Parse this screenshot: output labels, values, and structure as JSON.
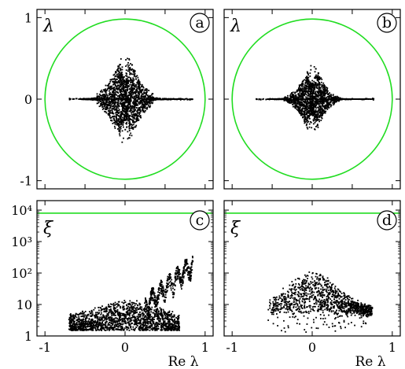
{
  "chart_data": [
    {
      "panel": "a",
      "type": "scatter",
      "y_symbol": "λ",
      "xlim": [
        -1.1,
        1.1
      ],
      "ylim": [
        -1.1,
        1.1
      ],
      "y_ticks": [
        {
          "v": 1,
          "label": "1"
        },
        {
          "v": 0,
          "label": "0"
        },
        {
          "v": -1,
          "label": "-1"
        }
      ],
      "x_ticks": [
        -1,
        -0.5,
        0,
        0.5,
        1
      ],
      "unit_circle": true,
      "circle_color": "#22dd22",
      "point_color": "#000000",
      "cloud": {
        "x_min": -0.7,
        "x_max": 0.85,
        "imag_max": 0.62,
        "center_x": 0.0,
        "n_points": 1800
      }
    },
    {
      "panel": "b",
      "type": "scatter",
      "y_symbol": "λ",
      "xlim": [
        -1.1,
        1.1
      ],
      "ylim": [
        -1.1,
        1.1
      ],
      "y_ticks": [
        {
          "v": 1,
          "label": ""
        },
        {
          "v": 0,
          "label": ""
        },
        {
          "v": -1,
          "label": ""
        }
      ],
      "x_ticks": [
        -1,
        -0.5,
        0,
        0.5,
        1
      ],
      "unit_circle": true,
      "circle_color": "#22dd22",
      "point_color": "#000000",
      "cloud": {
        "x_min": -0.7,
        "x_max": 0.78,
        "imag_max": 0.5,
        "center_x": 0.0,
        "n_points": 1500
      }
    },
    {
      "panel": "c",
      "type": "scatter",
      "y_symbol": "ξ",
      "y_scale": "log",
      "xlim": [
        -1.1,
        1.1
      ],
      "ylim": [
        1,
        20000
      ],
      "y_ticks": [
        {
          "v": 10000,
          "label": "10⁴"
        },
        {
          "v": 1000,
          "label": "10³"
        },
        {
          "v": 100,
          "label": "10²"
        },
        {
          "v": 10,
          "label": "10"
        },
        {
          "v": 1,
          "label": "1"
        }
      ],
      "x_ticks": [
        {
          "v": -1,
          "label": "-1"
        },
        {
          "v": 0,
          "label": "0"
        },
        {
          "v": 1,
          "label": "1"
        }
      ],
      "xlabel": "Re λ",
      "reference_line": {
        "y": 8000,
        "color": "#22dd22"
      },
      "point_color": "#000000",
      "cloud": {
        "x_min": -0.7,
        "x_max": 0.83,
        "n_points": 1600
      }
    },
    {
      "panel": "d",
      "type": "scatter",
      "y_symbol": "ξ",
      "y_scale": "log",
      "xlim": [
        -1.1,
        1.1
      ],
      "ylim": [
        1,
        20000
      ],
      "y_ticks": [
        {
          "v": 10000,
          "label": ""
        },
        {
          "v": 1000,
          "label": ""
        },
        {
          "v": 100,
          "label": ""
        },
        {
          "v": 10,
          "label": ""
        },
        {
          "v": 1,
          "label": ""
        }
      ],
      "x_ticks": [
        {
          "v": -1,
          "label": "-1"
        },
        {
          "v": 0,
          "label": "0"
        },
        {
          "v": 1,
          "label": "1"
        }
      ],
      "xlabel": "Re λ",
      "reference_line": {
        "y": 8000,
        "color": "#22dd22"
      },
      "point_color": "#000000",
      "cloud": {
        "x_min": -0.65,
        "x_max": 0.78,
        "n_points": 1100
      }
    }
  ]
}
